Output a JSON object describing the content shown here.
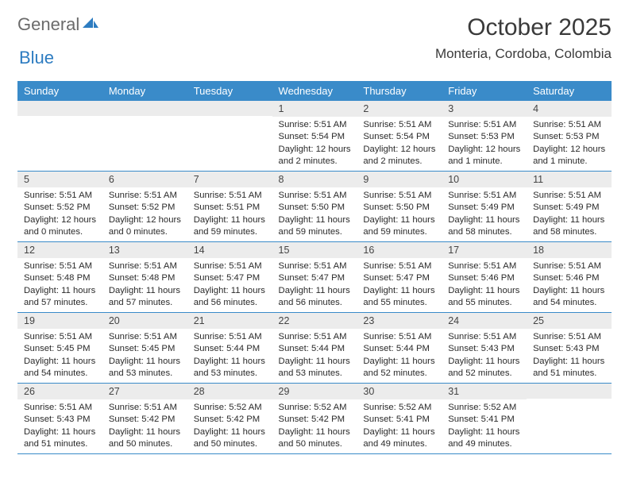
{
  "brand": {
    "word1": "General",
    "word2": "Blue"
  },
  "title": "October 2025",
  "location": "Monteria, Cordoba, Colombia",
  "colors": {
    "header_bg": "#3a8bc9",
    "header_text": "#ffffff",
    "band_bg": "#ececec",
    "rule": "#3a8bc9",
    "brand_gray": "#6b6b6b",
    "brand_blue": "#2d7cc1"
  },
  "weekdays": [
    "Sunday",
    "Monday",
    "Tuesday",
    "Wednesday",
    "Thursday",
    "Friday",
    "Saturday"
  ],
  "first_weekday_index": 3,
  "days": [
    {
      "n": 1,
      "sunrise": "5:51 AM",
      "sunset": "5:54 PM",
      "daylight": "12 hours and 2 minutes."
    },
    {
      "n": 2,
      "sunrise": "5:51 AM",
      "sunset": "5:54 PM",
      "daylight": "12 hours and 2 minutes."
    },
    {
      "n": 3,
      "sunrise": "5:51 AM",
      "sunset": "5:53 PM",
      "daylight": "12 hours and 1 minute."
    },
    {
      "n": 4,
      "sunrise": "5:51 AM",
      "sunset": "5:53 PM",
      "daylight": "12 hours and 1 minute."
    },
    {
      "n": 5,
      "sunrise": "5:51 AM",
      "sunset": "5:52 PM",
      "daylight": "12 hours and 0 minutes."
    },
    {
      "n": 6,
      "sunrise": "5:51 AM",
      "sunset": "5:52 PM",
      "daylight": "12 hours and 0 minutes."
    },
    {
      "n": 7,
      "sunrise": "5:51 AM",
      "sunset": "5:51 PM",
      "daylight": "11 hours and 59 minutes."
    },
    {
      "n": 8,
      "sunrise": "5:51 AM",
      "sunset": "5:50 PM",
      "daylight": "11 hours and 59 minutes."
    },
    {
      "n": 9,
      "sunrise": "5:51 AM",
      "sunset": "5:50 PM",
      "daylight": "11 hours and 59 minutes."
    },
    {
      "n": 10,
      "sunrise": "5:51 AM",
      "sunset": "5:49 PM",
      "daylight": "11 hours and 58 minutes."
    },
    {
      "n": 11,
      "sunrise": "5:51 AM",
      "sunset": "5:49 PM",
      "daylight": "11 hours and 58 minutes."
    },
    {
      "n": 12,
      "sunrise": "5:51 AM",
      "sunset": "5:48 PM",
      "daylight": "11 hours and 57 minutes."
    },
    {
      "n": 13,
      "sunrise": "5:51 AM",
      "sunset": "5:48 PM",
      "daylight": "11 hours and 57 minutes."
    },
    {
      "n": 14,
      "sunrise": "5:51 AM",
      "sunset": "5:47 PM",
      "daylight": "11 hours and 56 minutes."
    },
    {
      "n": 15,
      "sunrise": "5:51 AM",
      "sunset": "5:47 PM",
      "daylight": "11 hours and 56 minutes."
    },
    {
      "n": 16,
      "sunrise": "5:51 AM",
      "sunset": "5:47 PM",
      "daylight": "11 hours and 55 minutes."
    },
    {
      "n": 17,
      "sunrise": "5:51 AM",
      "sunset": "5:46 PM",
      "daylight": "11 hours and 55 minutes."
    },
    {
      "n": 18,
      "sunrise": "5:51 AM",
      "sunset": "5:46 PM",
      "daylight": "11 hours and 54 minutes."
    },
    {
      "n": 19,
      "sunrise": "5:51 AM",
      "sunset": "5:45 PM",
      "daylight": "11 hours and 54 minutes."
    },
    {
      "n": 20,
      "sunrise": "5:51 AM",
      "sunset": "5:45 PM",
      "daylight": "11 hours and 53 minutes."
    },
    {
      "n": 21,
      "sunrise": "5:51 AM",
      "sunset": "5:44 PM",
      "daylight": "11 hours and 53 minutes."
    },
    {
      "n": 22,
      "sunrise": "5:51 AM",
      "sunset": "5:44 PM",
      "daylight": "11 hours and 53 minutes."
    },
    {
      "n": 23,
      "sunrise": "5:51 AM",
      "sunset": "5:44 PM",
      "daylight": "11 hours and 52 minutes."
    },
    {
      "n": 24,
      "sunrise": "5:51 AM",
      "sunset": "5:43 PM",
      "daylight": "11 hours and 52 minutes."
    },
    {
      "n": 25,
      "sunrise": "5:51 AM",
      "sunset": "5:43 PM",
      "daylight": "11 hours and 51 minutes."
    },
    {
      "n": 26,
      "sunrise": "5:51 AM",
      "sunset": "5:43 PM",
      "daylight": "11 hours and 51 minutes."
    },
    {
      "n": 27,
      "sunrise": "5:51 AM",
      "sunset": "5:42 PM",
      "daylight": "11 hours and 50 minutes."
    },
    {
      "n": 28,
      "sunrise": "5:52 AM",
      "sunset": "5:42 PM",
      "daylight": "11 hours and 50 minutes."
    },
    {
      "n": 29,
      "sunrise": "5:52 AM",
      "sunset": "5:42 PM",
      "daylight": "11 hours and 50 minutes."
    },
    {
      "n": 30,
      "sunrise": "5:52 AM",
      "sunset": "5:41 PM",
      "daylight": "11 hours and 49 minutes."
    },
    {
      "n": 31,
      "sunrise": "5:52 AM",
      "sunset": "5:41 PM",
      "daylight": "11 hours and 49 minutes."
    }
  ],
  "labels": {
    "sunrise": "Sunrise:",
    "sunset": "Sunset:",
    "daylight": "Daylight:"
  }
}
